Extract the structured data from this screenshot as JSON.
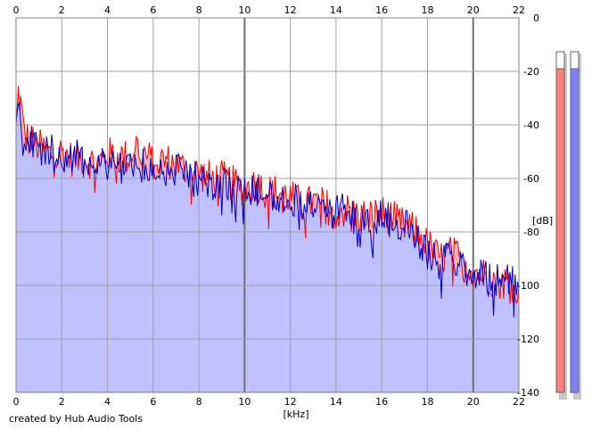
{
  "chart_data": {
    "type": "area",
    "xlabel": "[kHz]",
    "ylabel": "[dB]",
    "xlim": [
      0,
      22
    ],
    "ylim": [
      -140,
      0
    ],
    "x_ticks": [
      0,
      2,
      4,
      6,
      8,
      10,
      12,
      14,
      16,
      18,
      20,
      22
    ],
    "y_ticks": [
      0,
      -20,
      -40,
      -60,
      -80,
      -100,
      -120,
      -140
    ],
    "grid": true,
    "series": [
      {
        "color": "#ff0000",
        "fill": "#ffb3b3",
        "x": [
          0,
          0.1,
          0.2,
          0.3,
          0.5,
          0.8,
          1,
          1.5,
          2,
          2.5,
          3,
          3.5,
          4,
          4.5,
          5,
          5.2,
          5.5,
          6,
          6.5,
          7,
          7.5,
          8,
          8.5,
          9,
          9.5,
          10,
          10.5,
          11,
          11.5,
          12,
          12.5,
          13,
          13.5,
          14,
          14.5,
          15,
          15.5,
          16,
          16.5,
          17,
          17.5,
          18,
          18.5,
          19,
          19.5,
          20,
          20.5,
          21,
          21.5,
          22
        ],
        "values": [
          -42,
          -28,
          -32,
          -40,
          -45,
          -47,
          -48,
          -51,
          -50,
          -53,
          -52,
          -55,
          -51,
          -52,
          -52,
          -47,
          -50,
          -54,
          -53,
          -55,
          -57,
          -58,
          -60,
          -60,
          -62,
          -64,
          -62,
          -65,
          -65,
          -67,
          -70,
          -69,
          -70,
          -72,
          -72,
          -74,
          -74,
          -73,
          -75,
          -78,
          -80,
          -85,
          -90,
          -88,
          -90,
          -94,
          -96,
          -98,
          -99,
          -100
        ]
      },
      {
        "color": "#0000cc",
        "fill": "#c0c0ff",
        "x": [
          0,
          0.1,
          0.2,
          0.3,
          0.5,
          0.8,
          1,
          1.5,
          2,
          2.5,
          3,
          3.5,
          4,
          4.5,
          5,
          5.2,
          5.5,
          6,
          6.5,
          7,
          7.5,
          8,
          8.5,
          9,
          9.5,
          10,
          10.5,
          11,
          11.5,
          12,
          12.5,
          13,
          13.5,
          14,
          14.5,
          15,
          15.5,
          16,
          16.5,
          17,
          17.5,
          18,
          18.5,
          19,
          19.5,
          20,
          20.5,
          21,
          21.5,
          22
        ],
        "values": [
          -45,
          -30,
          -34,
          -42,
          -46,
          -48,
          -49,
          -50,
          -52,
          -52,
          -53,
          -54,
          -54,
          -55,
          -55,
          -54,
          -55,
          -58,
          -56,
          -57,
          -60,
          -60,
          -61,
          -63,
          -63,
          -64,
          -62,
          -65,
          -66,
          -67,
          -69,
          -70,
          -71,
          -72,
          -73,
          -73,
          -75,
          -75,
          -76,
          -78,
          -81,
          -88,
          -91,
          -90,
          -92,
          -95,
          -97,
          -98,
          -99,
          -100
        ]
      }
    ],
    "meters": [
      {
        "color": "#ff7f7f",
        "level": 0.95
      },
      {
        "color": "#8080ff",
        "level": 0.95
      }
    ]
  },
  "footer": {
    "credit": "created by Hub Audio Tools"
  }
}
